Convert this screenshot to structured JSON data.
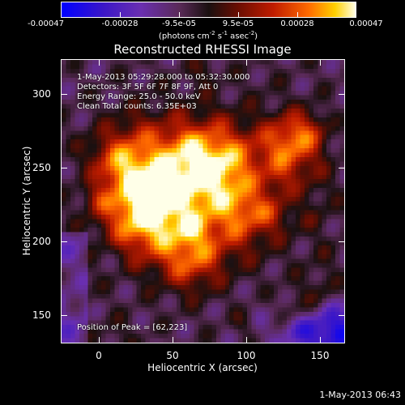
{
  "colorbar": {
    "tick_labels": [
      "-0.00047",
      "-0.00028",
      "-9.5e-05",
      "9.5e-05",
      "0.00028",
      "0.00047"
    ],
    "units_prefix": "(photons cm",
    "units_e1": "-2",
    "units_mid1": " s",
    "units_e2": "-1",
    "units_mid2": " asec",
    "units_e3": "-2",
    "units_suffix": ")",
    "colors": [
      "#0000ff",
      "#6a2fb0",
      "#1a1010",
      "#c01c00",
      "#ff6a00",
      "#ffffe8"
    ]
  },
  "title": "Reconstructed RHESSI Image",
  "info": {
    "time_range": "1-May-2013 05:29:28.000 to 05:32:30.000",
    "detectors": "Detectors: 3F 5F 6F 7F 8F 9F, Att 0",
    "energy": "Energy Range: 25.0 - 50.0 keV",
    "method": "Clean    Total counts: 6.35E+03",
    "peak": "Position of Peak = [62,223]"
  },
  "axes": {
    "xlabel": "Heliocentric X (arcsec)",
    "ylabel": "Heliocentric Y (arcsec)",
    "x_ticks": [
      "0",
      "50",
      "100",
      "150"
    ],
    "y_ticks": [
      "300",
      "250",
      "200",
      "150"
    ],
    "xlim": [
      -28,
      165
    ],
    "ylim": [
      128,
      321
    ]
  },
  "datestamp": "1-May-2013 06:43"
}
